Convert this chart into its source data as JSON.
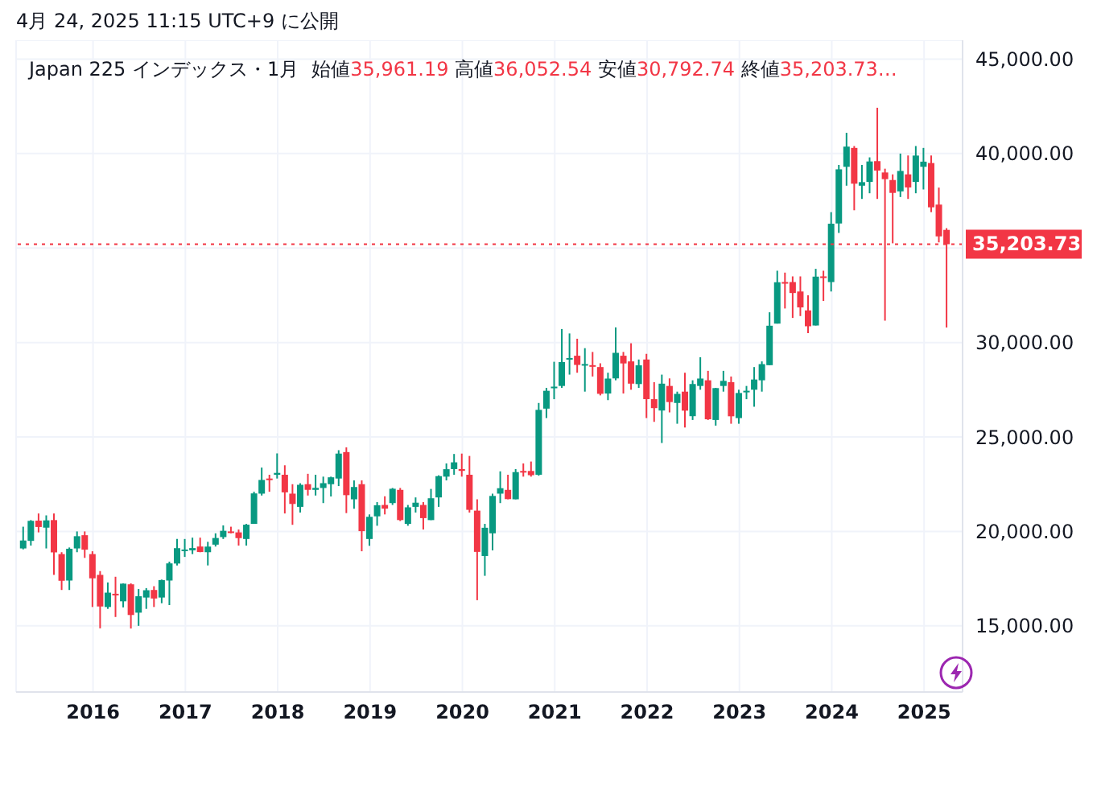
{
  "chart_data": {
    "type": "candlestick",
    "title": "Japan 225 インデックス・1月",
    "annotations": [
      "4月 24, 2025 11:15 UTC+9 に公開",
      "始値35,961.19 高値36,052.54 安値30,792.74 終値35,203.73…"
    ],
    "x": [
      "2015-04",
      "2015-05",
      "2015-06",
      "2015-07",
      "2015-08",
      "2015-09",
      "2015-10",
      "2015-11",
      "2015-12",
      "2016-01",
      "2016-02",
      "2016-03",
      "2016-04",
      "2016-05",
      "2016-06",
      "2016-07",
      "2016-08",
      "2016-09",
      "2016-10",
      "2016-11",
      "2016-12",
      "2017-01",
      "2017-02",
      "2017-03",
      "2017-04",
      "2017-05",
      "2017-06",
      "2017-07",
      "2017-08",
      "2017-09",
      "2017-10",
      "2017-11",
      "2017-12",
      "2018-01",
      "2018-02",
      "2018-03",
      "2018-04",
      "2018-05",
      "2018-06",
      "2018-07",
      "2018-08",
      "2018-09",
      "2018-10",
      "2018-11",
      "2018-12",
      "2019-01",
      "2019-02",
      "2019-03",
      "2019-04",
      "2019-05",
      "2019-06",
      "2019-07",
      "2019-08",
      "2019-09",
      "2019-10",
      "2019-11",
      "2019-12",
      "2020-01",
      "2020-02",
      "2020-03",
      "2020-04",
      "2020-05",
      "2020-06",
      "2020-07",
      "2020-08",
      "2020-09",
      "2020-10",
      "2020-11",
      "2020-12",
      "2021-01",
      "2021-02",
      "2021-03",
      "2021-04",
      "2021-05",
      "2021-06",
      "2021-07",
      "2021-08",
      "2021-09",
      "2021-10",
      "2021-11",
      "2021-12",
      "2022-01",
      "2022-02",
      "2022-03",
      "2022-04",
      "2022-05",
      "2022-06",
      "2022-07",
      "2022-08",
      "2022-09",
      "2022-10",
      "2022-11",
      "2022-12",
      "2023-01",
      "2023-02",
      "2023-03",
      "2023-04",
      "2023-05",
      "2023-06",
      "2023-07",
      "2023-08",
      "2023-09",
      "2023-10",
      "2023-11",
      "2023-12",
      "2024-01",
      "2024-02",
      "2024-03",
      "2024-04",
      "2024-05",
      "2024-06",
      "2024-07",
      "2024-08",
      "2024-09",
      "2024-10",
      "2024-11",
      "2024-12",
      "2025-01",
      "2025-02",
      "2025-03",
      "2025-04"
    ],
    "ohlc": [
      [
        19100,
        20250,
        19050,
        19520
      ],
      [
        19500,
        20600,
        19250,
        20560
      ],
      [
        20570,
        20950,
        19950,
        20236
      ],
      [
        20200,
        20850,
        19100,
        20585
      ],
      [
        20600,
        20950,
        17700,
        18890
      ],
      [
        18800,
        18900,
        16900,
        17388
      ],
      [
        17400,
        19150,
        16900,
        19083
      ],
      [
        19100,
        20000,
        18900,
        19747
      ],
      [
        19800,
        20000,
        18600,
        19034
      ],
      [
        18800,
        18950,
        16000,
        17518
      ],
      [
        17700,
        17900,
        14870,
        16027
      ],
      [
        16000,
        17300,
        15900,
        16759
      ],
      [
        16700,
        17600,
        15470,
        16666
      ],
      [
        16300,
        17250,
        15980,
        17235
      ],
      [
        17200,
        17250,
        14860,
        15576
      ],
      [
        15700,
        16950,
        15000,
        16569
      ],
      [
        16500,
        17000,
        15900,
        16887
      ],
      [
        16900,
        17100,
        16000,
        16450
      ],
      [
        16500,
        17450,
        16200,
        17425
      ],
      [
        17400,
        18400,
        16100,
        18308
      ],
      [
        18300,
        19600,
        18200,
        19114
      ],
      [
        19000,
        19600,
        18650,
        19041
      ],
      [
        19000,
        19670,
        18800,
        19119
      ],
      [
        19200,
        19670,
        18900,
        18909
      ],
      [
        18900,
        19450,
        18200,
        19197
      ],
      [
        19300,
        19900,
        19200,
        19651
      ],
      [
        19700,
        20320,
        19600,
        20033
      ],
      [
        20000,
        20250,
        19900,
        19925
      ],
      [
        19950,
        20100,
        19250,
        19646
      ],
      [
        19600,
        20400,
        19250,
        20356
      ],
      [
        20400,
        22100,
        20400,
        22012
      ],
      [
        22000,
        23380,
        21900,
        22724
      ],
      [
        22800,
        23000,
        22100,
        22764
      ],
      [
        23000,
        24130,
        22800,
        23098
      ],
      [
        23000,
        23500,
        20950,
        22068
      ],
      [
        22000,
        22500,
        20350,
        21454
      ],
      [
        21300,
        22550,
        21000,
        22468
      ],
      [
        22500,
        23050,
        21900,
        22202
      ],
      [
        22200,
        23000,
        21900,
        22305
      ],
      [
        22300,
        22900,
        21500,
        22554
      ],
      [
        22500,
        22900,
        21850,
        22865
      ],
      [
        22800,
        24300,
        22400,
        24120
      ],
      [
        24200,
        24450,
        20970,
        21920
      ],
      [
        21700,
        22700,
        21200,
        22351
      ],
      [
        22500,
        22700,
        18950,
        20015
      ],
      [
        19600,
        20900,
        19240,
        20773
      ],
      [
        20800,
        21550,
        20300,
        21385
      ],
      [
        21400,
        21860,
        20900,
        21206
      ],
      [
        21500,
        22300,
        21400,
        22259
      ],
      [
        22200,
        22300,
        20550,
        20601
      ],
      [
        20400,
        21400,
        20300,
        21276
      ],
      [
        21300,
        21800,
        21000,
        21521
      ],
      [
        21400,
        21550,
        20100,
        20704
      ],
      [
        20600,
        22250,
        20600,
        21756
      ],
      [
        21800,
        22970,
        21300,
        22927
      ],
      [
        22900,
        23600,
        22700,
        23294
      ],
      [
        23300,
        24100,
        23000,
        23657
      ],
      [
        23300,
        24120,
        22900,
        23205
      ],
      [
        23000,
        23995,
        21000,
        21143
      ],
      [
        21100,
        21700,
        16360,
        18917
      ],
      [
        18700,
        20400,
        17650,
        20194
      ],
      [
        19900,
        22000,
        19000,
        21878
      ],
      [
        22000,
        23180,
        21500,
        22288
      ],
      [
        22200,
        23000,
        21700,
        21710
      ],
      [
        21700,
        23300,
        21700,
        23140
      ],
      [
        23200,
        23600,
        22900,
        23185
      ],
      [
        23200,
        23700,
        22900,
        22977
      ],
      [
        23000,
        26800,
        22950,
        26434
      ],
      [
        26500,
        27600,
        26000,
        27444
      ],
      [
        27600,
        28980,
        27000,
        27663
      ],
      [
        27700,
        30714,
        27600,
        28966
      ],
      [
        29100,
        30480,
        28300,
        29179
      ],
      [
        29300,
        30200,
        28400,
        28813
      ],
      [
        28800,
        29700,
        27400,
        28860
      ],
      [
        28800,
        29500,
        28200,
        28792
      ],
      [
        28700,
        28900,
        27200,
        27284
      ],
      [
        27300,
        28400,
        26950,
        28090
      ],
      [
        28100,
        30800,
        28000,
        29453
      ],
      [
        29300,
        29500,
        27300,
        28892
      ],
      [
        29000,
        29960,
        27500,
        27822
      ],
      [
        27800,
        29100,
        27600,
        28792
      ],
      [
        29100,
        29400,
        26000,
        27002
      ],
      [
        27000,
        27900,
        25800,
        26527
      ],
      [
        26400,
        28300,
        24680,
        27821
      ],
      [
        27700,
        28100,
        26300,
        26848
      ],
      [
        26800,
        27400,
        25700,
        27280
      ],
      [
        27400,
        28400,
        25500,
        26393
      ],
      [
        26100,
        28000,
        25900,
        27802
      ],
      [
        27700,
        29220,
        27500,
        28092
      ],
      [
        28000,
        28500,
        25900,
        25937
      ],
      [
        25900,
        27600,
        25600,
        27587
      ],
      [
        27700,
        28500,
        27400,
        27969
      ],
      [
        27900,
        28200,
        25700,
        26095
      ],
      [
        26000,
        27500,
        25700,
        27327
      ],
      [
        27400,
        27700,
        27000,
        27446
      ],
      [
        27500,
        28700,
        26600,
        28041
      ],
      [
        28000,
        29000,
        27400,
        28856
      ],
      [
        28800,
        31600,
        28800,
        30888
      ],
      [
        31000,
        33800,
        31000,
        33189
      ],
      [
        33200,
        33700,
        31800,
        33172
      ],
      [
        33200,
        33500,
        31300,
        32619
      ],
      [
        32700,
        33500,
        31400,
        31858
      ],
      [
        31700,
        32500,
        30500,
        30859
      ],
      [
        30900,
        33900,
        30900,
        33487
      ],
      [
        33500,
        33800,
        32200,
        33464
      ],
      [
        33200,
        36900,
        32700,
        36287
      ],
      [
        36300,
        39400,
        35800,
        39166
      ],
      [
        39300,
        41100,
        38300,
        40369
      ],
      [
        40300,
        40400,
        37000,
        38406
      ],
      [
        38300,
        39400,
        37600,
        38488
      ],
      [
        38500,
        39800,
        37900,
        39583
      ],
      [
        39600,
        42426,
        37600,
        39102
      ],
      [
        39000,
        39200,
        31156,
        38648
      ],
      [
        38600,
        38900,
        35250,
        37920
      ],
      [
        38000,
        40000,
        37700,
        39081
      ],
      [
        38900,
        39900,
        37600,
        38208
      ],
      [
        38500,
        40400,
        37900,
        39895
      ],
      [
        39300,
        40300,
        38100,
        39573
      ],
      [
        39500,
        39900,
        36900,
        37156
      ],
      [
        37300,
        38200,
        35300,
        35618
      ],
      [
        35961.19,
        36052.54,
        30792.74,
        35203.73
      ]
    ],
    "colors": [
      "#089981",
      "#089981",
      "#f23645",
      "#089981",
      "#f23645",
      "#f23645",
      "#089981",
      "#089981",
      "#f23645",
      "#f23645",
      "#f23645",
      "#089981",
      "#f23645",
      "#089981",
      "#f23645",
      "#089981",
      "#089981",
      "#f23645",
      "#089981",
      "#089981",
      "#089981",
      "#089981",
      "#089981",
      "#f23645",
      "#089981",
      "#089981",
      "#089981",
      "#f23645",
      "#f23645",
      "#089981",
      "#089981",
      "#089981",
      "#f23645",
      "#089981",
      "#f23645",
      "#f23645",
      "#089981",
      "#f23645",
      "#089981",
      "#089981",
      "#089981",
      "#089981",
      "#f23645",
      "#089981",
      "#f23645",
      "#089981",
      "#089981",
      "#f23645",
      "#089981",
      "#f23645",
      "#089981",
      "#089981",
      "#f23645",
      "#089981",
      "#089981",
      "#089981",
      "#089981",
      "#f23645",
      "#f23645",
      "#f23645",
      "#089981",
      "#089981",
      "#089981",
      "#f23645",
      "#089981",
      "#f23645",
      "#f23645",
      "#089981",
      "#089981",
      "#089981",
      "#089981",
      "#089981",
      "#f23645",
      "#089981",
      "#f23645",
      "#f23645",
      "#089981",
      "#089981",
      "#f23645",
      "#f23645",
      "#089981",
      "#f23645",
      "#f23645",
      "#089981",
      "#f23645",
      "#089981",
      "#f23645",
      "#089981",
      "#089981",
      "#f23645",
      "#089981",
      "#089981",
      "#f23645",
      "#089981",
      "#089981",
      "#089981",
      "#089981",
      "#089981",
      "#089981",
      "#f23645",
      "#f23645",
      "#f23645",
      "#f23645",
      "#089981",
      "#f23645",
      "#089981",
      "#089981",
      "#089981",
      "#f23645",
      "#089981",
      "#089981",
      "#f23645",
      "#f23645",
      "#f23645",
      "#089981",
      "#f23645",
      "#089981",
      "#089981",
      "#f23645",
      "#f23645",
      "#f23645"
    ],
    "xlim": [
      "2015-03",
      "2025-06"
    ],
    "xticks": [
      "2016",
      "2017",
      "2018",
      "2019",
      "2020",
      "2021",
      "2022",
      "2023",
      "2024",
      "2025"
    ],
    "ylim": [
      11500,
      46000
    ],
    "yticks": [
      {
        "value": 15000,
        "label": "15,000.00"
      },
      {
        "value": 20000,
        "label": "20,000.00"
      },
      {
        "value": 25000,
        "label": "25,000.00"
      },
      {
        "value": 30000,
        "label": "30,000.00"
      },
      {
        "value": 35000,
        "label": null
      },
      {
        "value": 40000,
        "label": "40,000.00"
      },
      {
        "value": 45000,
        "label": "45,000.00"
      }
    ],
    "ref_lines": [
      {
        "axis": "y",
        "value": 35203.73,
        "label": "35,203.73",
        "color": "#f23645",
        "line_style": "dotted"
      }
    ],
    "grid": true,
    "legend": false
  }
}
